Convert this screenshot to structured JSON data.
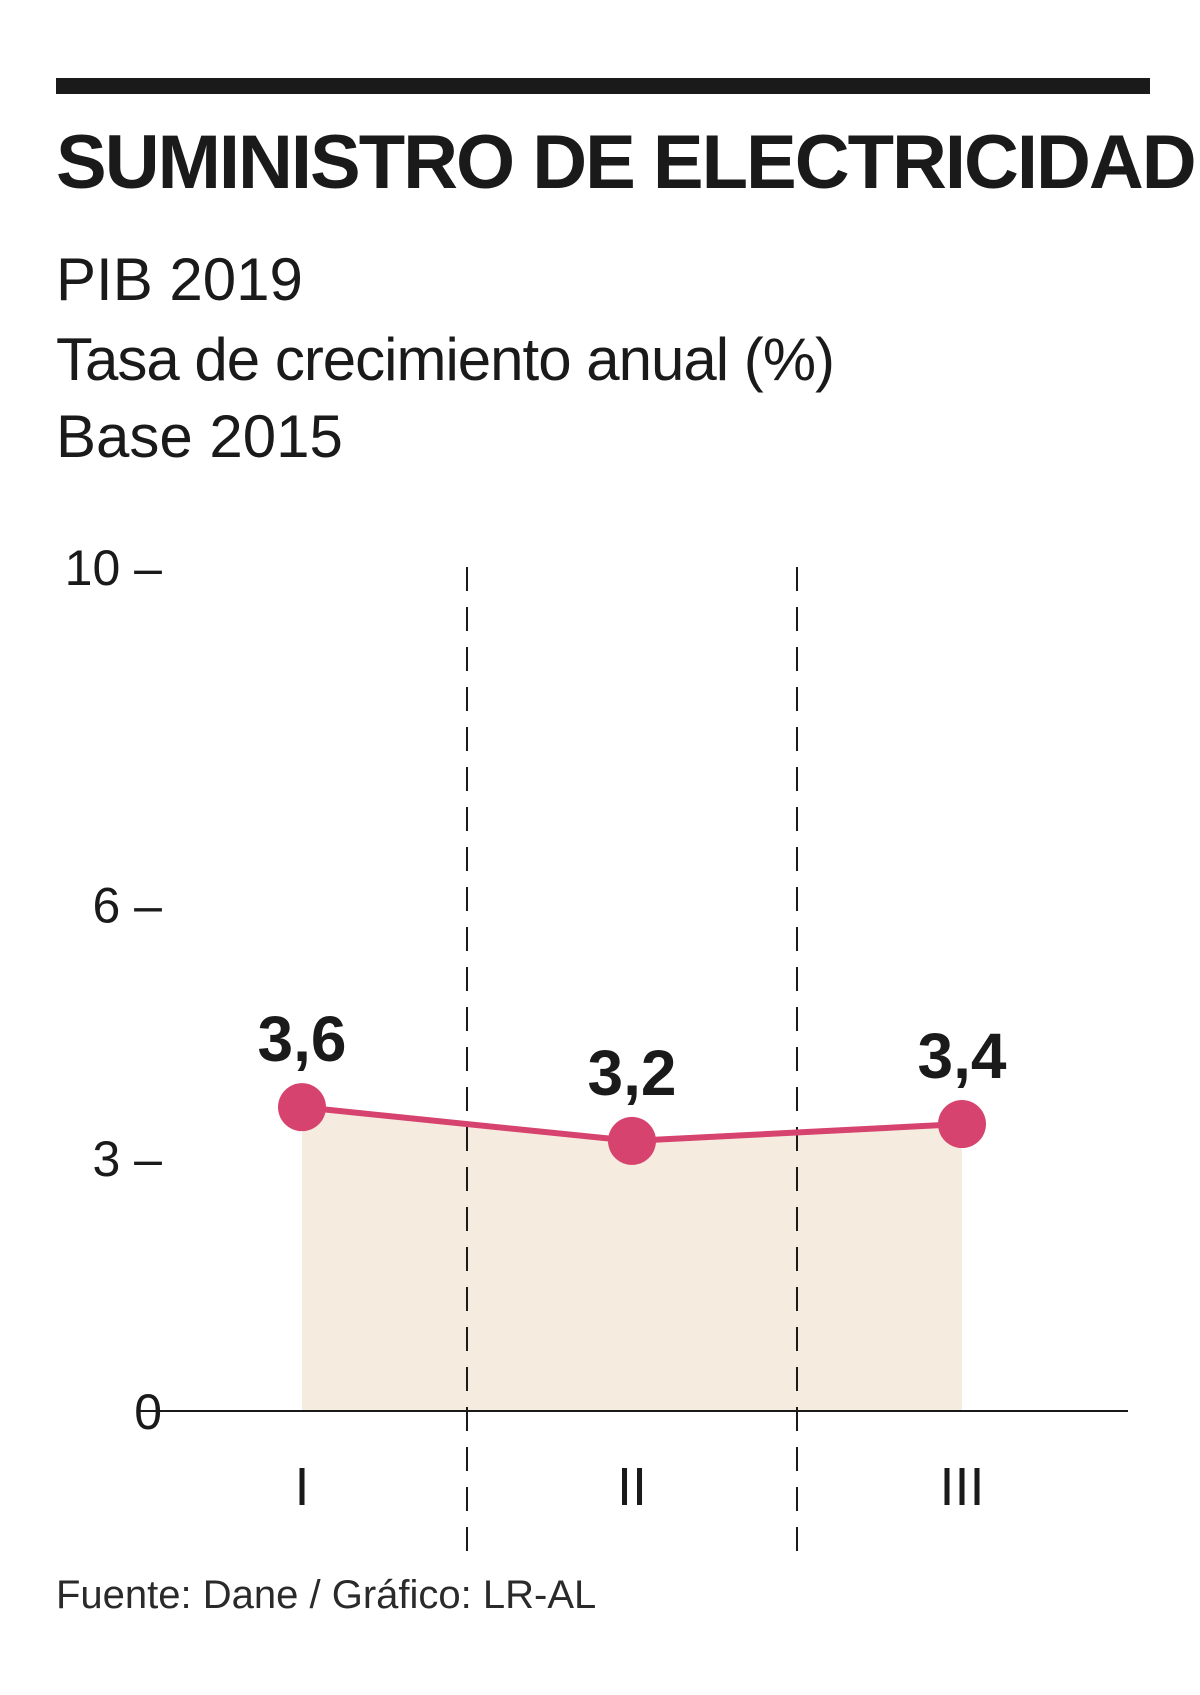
{
  "title": "SUMINISTRO DE ELECTRICIDAD",
  "subtitle": "PIB 2019",
  "description": "Tasa de crecimiento anual (%)",
  "base": "Base 2015",
  "source": "Fuente: Dane / Gráfico: LR-AL",
  "colors": {
    "line": "#d6436e",
    "area": "#f6ebdf",
    "text": "#1a1a1a"
  },
  "chart_data": {
    "type": "area",
    "title": "SUMINISTRO DE ELECTRICIDAD",
    "xlabel": "",
    "ylabel": "Tasa de crecimiento anual (%)",
    "categories": [
      "I",
      "II",
      "III"
    ],
    "values": [
      3.6,
      3.2,
      3.4
    ],
    "data_labels": [
      "3,6",
      "3,2",
      "3,4"
    ],
    "y_ticks": [
      0,
      3,
      6,
      10
    ],
    "y_tick_labels": [
      "0",
      "3 –",
      "6 –",
      "10 –"
    ],
    "ylim": [
      0,
      10
    ],
    "grid": "dashed vertical separators between quarters"
  }
}
